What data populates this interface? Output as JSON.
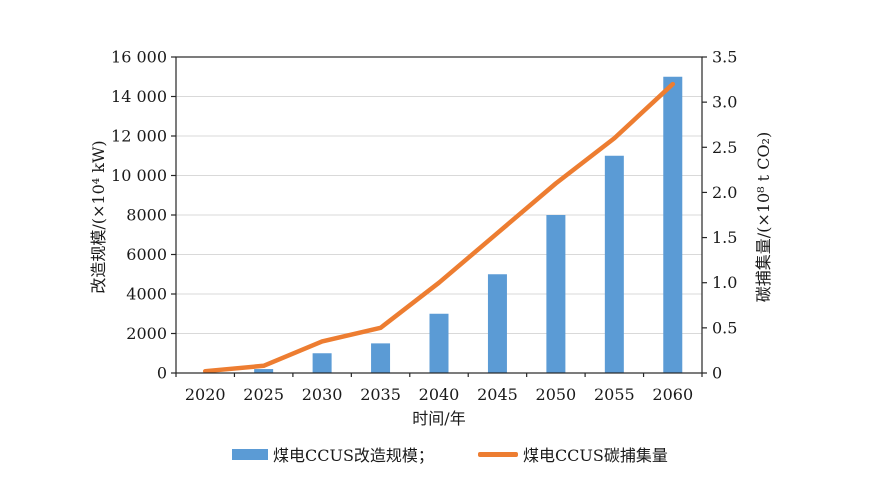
{
  "chart_data": {
    "type": "combo (bar + line, dual y-axis)",
    "categories": [
      "2020",
      "2025",
      "2030",
      "2035",
      "2040",
      "2045",
      "2050",
      "2055",
      "2060"
    ],
    "series": [
      {
        "name": "煤电CCUS改造规模",
        "type": "bar",
        "axis": "left",
        "unit": "×10⁴ kW",
        "color": "#5B9BD5",
        "values": [
          0,
          200,
          1000,
          1500,
          3000,
          5000,
          8000,
          11000,
          15000
        ]
      },
      {
        "name": "煤电CCUS碳捕集量",
        "type": "line",
        "axis": "right",
        "unit": "×10⁸ t CO₂",
        "color": "#ED7D31",
        "values": [
          0.02,
          0.08,
          0.35,
          0.5,
          1.0,
          1.55,
          2.1,
          2.6,
          3.2
        ]
      }
    ],
    "xlabel": "时间/年",
    "ylabel_left": "改造规模/(×10⁴ kW)",
    "ylabel_right": "碳捕集量/(×10⁸ t CO₂)",
    "ylim_left": [
      0,
      16000
    ],
    "ylim_right": [
      0,
      3.5
    ],
    "yticks_left": [
      {
        "value": 0,
        "label": "0"
      },
      {
        "value": 2000,
        "label": "2000"
      },
      {
        "value": 4000,
        "label": "4000"
      },
      {
        "value": 6000,
        "label": "6000"
      },
      {
        "value": 8000,
        "label": "8000"
      },
      {
        "value": 10000,
        "label": "10 000"
      },
      {
        "value": 12000,
        "label": "12 000"
      },
      {
        "value": 14000,
        "label": "14 000"
      },
      {
        "value": 16000,
        "label": "16 000"
      }
    ],
    "yticks_right": [
      {
        "value": 0,
        "label": "0"
      },
      {
        "value": 0.5,
        "label": "0.5"
      },
      {
        "value": 1.0,
        "label": "1.0"
      },
      {
        "value": 1.5,
        "label": "1.5"
      },
      {
        "value": 2.0,
        "label": "2.0"
      },
      {
        "value": 2.5,
        "label": "2.5"
      },
      {
        "value": 3.0,
        "label": "3.0"
      },
      {
        "value": 3.5,
        "label": "3.5"
      }
    ],
    "grid": true,
    "legend_position": "bottom",
    "colors": {
      "bar": "#5B9BD5",
      "line": "#ED7D31",
      "grid": "#D9D9D9",
      "axis": "#262626",
      "text": "#1a1a1a",
      "background": "#ffffff"
    }
  },
  "legend": {
    "bar_label": "煤电CCUS改造规模；",
    "line_label": "煤电CCUS碳捕集量"
  }
}
